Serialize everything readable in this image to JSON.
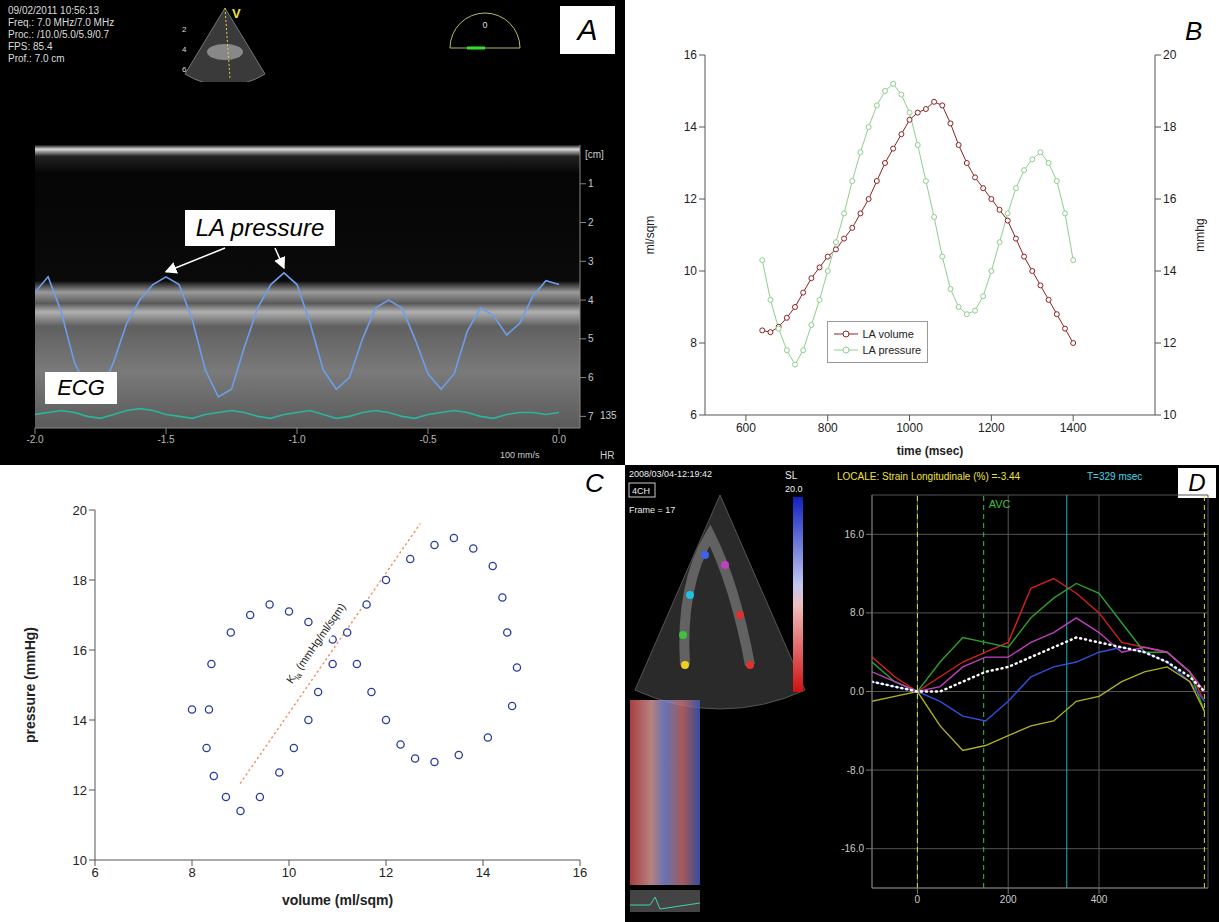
{
  "chart_data": [
    {
      "panel_label": "A",
      "type": "line",
      "header": [
        "09/02/2011 10:56:13",
        "Freq.: 7.0 MHz/7.0 MHz",
        "Proc.: /10.0/5.0/5.9/0.7",
        "FPS: 85.4",
        "Prof.: 7.0 cm"
      ],
      "probe_mark": "V",
      "probe_depth_ticks": [
        2,
        4,
        6
      ],
      "angle": 0,
      "y_unit": "[cm]",
      "x": [
        -2,
        -1.95,
        -1.9,
        -1.85,
        -1.8,
        -1.75,
        -1.7,
        -1.65,
        -1.6,
        -1.55,
        -1.5,
        -1.45,
        -1.4,
        -1.35,
        -1.3,
        -1.25,
        -1.2,
        -1.15,
        -1.1,
        -1.05,
        -1,
        -0.95,
        -0.9,
        -0.85,
        -0.8,
        -0.75,
        -0.7,
        -0.65,
        -0.6,
        -0.55,
        -0.5,
        -0.45,
        -0.4,
        -0.35,
        -0.3,
        -0.25,
        -0.2,
        -0.15,
        -0.1,
        -0.05,
        0
      ],
      "xlim": [
        -2,
        0.08
      ],
      "xticks": [
        {
          "value": -2,
          "label": "-2.0"
        },
        {
          "value": -1.5,
          "label": "-1.5"
        },
        {
          "value": -1,
          "label": "-1.0"
        },
        {
          "value": -0.5,
          "label": "-0.5"
        },
        {
          "value": 0,
          "label": "0.0"
        }
      ],
      "ylim": [
        0,
        7.3
      ],
      "yticks": [
        1,
        2,
        3,
        4,
        5,
        6,
        7
      ],
      "series": [
        {
          "name": "LA pressure",
          "color": "#6d9eeb",
          "values": [
            3.8,
            3.4,
            4.3,
            5.6,
            6.3,
            6.4,
            5.6,
            4.6,
            4.0,
            3.6,
            3.4,
            3.6,
            4.5,
            5.8,
            6.5,
            6.3,
            5.2,
            4.2,
            3.6,
            3.3,
            3.6,
            4.6,
            5.8,
            6.3,
            6.0,
            5.0,
            4.2,
            4.0,
            4.2,
            5.0,
            5.9,
            6.3,
            5.9,
            4.8,
            4.2,
            4.4,
            4.9,
            4.6,
            3.9,
            3.5,
            3.6
          ]
        },
        {
          "name": "ECG",
          "color": "#2bb59d",
          "values": [
            6.95,
            6.9,
            6.85,
            6.9,
            7.0,
            7.05,
            6.95,
            6.85,
            6.8,
            6.85,
            6.95,
            7.0,
            7.05,
            6.95,
            6.9,
            6.85,
            6.9,
            7.0,
            7.05,
            6.95,
            6.9,
            6.85,
            6.95,
            7.05,
            7.0,
            6.9,
            6.85,
            6.9,
            7.0,
            7.05,
            6.95,
            6.9,
            6.85,
            6.9,
            7.0,
            7.05,
            6.95,
            6.9,
            6.9,
            6.95,
            6.9
          ]
        }
      ],
      "heart_rate": 135,
      "heart_rate_label": "HR",
      "sweep_speed": "100 mm/s"
    },
    {
      "panel_label": "B",
      "type": "line",
      "x": [
        640,
        660,
        680,
        700,
        720,
        740,
        760,
        780,
        800,
        820,
        840,
        860,
        880,
        900,
        920,
        940,
        960,
        980,
        1000,
        1020,
        1040,
        1060,
        1080,
        1100,
        1120,
        1140,
        1160,
        1180,
        1200,
        1220,
        1240,
        1260,
        1280,
        1300,
        1320,
        1340,
        1360,
        1380,
        1400
      ],
      "xlim": [
        500,
        1600
      ],
      "xticks": [
        600,
        800,
        1000,
        1200,
        1400
      ],
      "ylim": [
        6,
        16
      ],
      "yticks": [
        6,
        8,
        10,
        12,
        14,
        16
      ],
      "y2lim": [
        10,
        20
      ],
      "y2ticks": [
        10,
        12,
        14,
        16,
        18,
        20
      ],
      "xlabel": "time (msec)",
      "ylabel": "ml/sqm",
      "y2label": "mmhg",
      "legend": "lower left",
      "marker": "circle",
      "series": [
        {
          "name": "LA volume",
          "color": "#8b2323",
          "values": [
            8.35,
            8.3,
            8.45,
            8.7,
            9.0,
            9.4,
            9.8,
            10.1,
            10.4,
            10.6,
            10.9,
            11.2,
            11.6,
            12.0,
            12.5,
            13.0,
            13.4,
            13.8,
            14.2,
            14.4,
            14.5,
            14.7,
            14.6,
            14.1,
            13.5,
            13.0,
            12.6,
            12.3,
            12.0,
            11.7,
            11.4,
            10.9,
            10.4,
            10.0,
            9.6,
            9.2,
            8.8,
            8.4,
            8.0
          ]
        },
        {
          "name": "LA pressure",
          "color": "#8fce8f",
          "axis": "y2",
          "values": [
            14.3,
            13.2,
            12.4,
            11.8,
            11.4,
            11.8,
            12.5,
            13.2,
            14.0,
            14.8,
            15.6,
            16.5,
            17.3,
            18.0,
            18.6,
            19.0,
            19.2,
            18.9,
            18.4,
            17.5,
            16.5,
            15.5,
            14.4,
            13.5,
            13.0,
            12.8,
            12.9,
            13.3,
            14.0,
            14.8,
            15.6,
            16.3,
            16.8,
            17.1,
            17.3,
            17.0,
            16.5,
            15.6,
            14.3
          ]
        }
      ]
    },
    {
      "panel_label": "C",
      "type": "scatter",
      "x": [
        8.35,
        8.3,
        8.45,
        8.7,
        9.0,
        9.4,
        9.8,
        10.1,
        10.4,
        10.6,
        10.9,
        11.2,
        11.6,
        12.0,
        12.5,
        13.0,
        13.4,
        13.8,
        14.2,
        14.4,
        14.5,
        14.7,
        14.6,
        14.1,
        13.5,
        13.0,
        12.6,
        12.3,
        12.0,
        11.7,
        11.4,
        10.9,
        10.4,
        10.0,
        9.6,
        9.2,
        8.8,
        8.4,
        8.0
      ],
      "y": [
        14.3,
        13.2,
        12.4,
        11.8,
        11.4,
        11.8,
        12.5,
        13.2,
        14.0,
        14.8,
        15.6,
        16.5,
        17.3,
        18.0,
        18.6,
        19.0,
        19.2,
        18.9,
        18.4,
        17.5,
        16.5,
        15.5,
        14.4,
        13.5,
        13.0,
        12.8,
        12.9,
        13.3,
        14.0,
        14.8,
        15.6,
        16.3,
        16.8,
        17.1,
        17.3,
        17.0,
        16.5,
        15.6,
        14.3
      ],
      "xlim": [
        6,
        16
      ],
      "xticks": [
        6,
        8,
        10,
        12,
        14,
        16
      ],
      "ylim": [
        10,
        20
      ],
      "yticks": [
        10,
        12,
        14,
        16,
        18,
        20
      ],
      "xlabel": "volume (ml/sqm)",
      "ylabel": "pressure (mmHg)",
      "color": "#2a3aa0",
      "marker": "circle",
      "slope_line": {
        "x": [
          9.0,
          12.7
        ],
        "y": [
          12.2,
          19.6
        ],
        "color": "#f09060",
        "line_style": "dotted"
      },
      "annotation": {
        "symbol": "K",
        "subscript": "la",
        "text": " (mmHg/ml/sqm)"
      }
    },
    {
      "panel_label": "D",
      "type": "line",
      "echo_timestamp": "2008/03/04-12:19:42",
      "view": "4CH",
      "frame": "Frame = 17",
      "colorbar_label": "SL",
      "colorbar_ticks": [
        {
          "value": 20,
          "label": "20.0"
        }
      ],
      "title": "LOCALE: Strain Longitudinale (%) =-3.44",
      "subtitle": "T=329 msec",
      "x": [
        -100,
        -50,
        0,
        50,
        100,
        150,
        200,
        250,
        300,
        350,
        400,
        450,
        500,
        550,
        600,
        632
      ],
      "xlim": [
        -100,
        640
      ],
      "xticks": [
        0,
        200,
        400
      ],
      "ylim": [
        -20,
        20
      ],
      "yticks": [
        {
          "value": 16,
          "label": "16.0"
        },
        {
          "value": 8,
          "label": "8.0"
        },
        {
          "value": 0,
          "label": "0.0"
        },
        {
          "value": -8,
          "label": "-8.0"
        },
        {
          "value": -16,
          "label": "-16.0"
        }
      ],
      "grid": true,
      "series": [
        {
          "color": "#d62020",
          "values": [
            3.5,
            1.5,
            0,
            1.5,
            3,
            4,
            5,
            10.5,
            11.5,
            10,
            8,
            5,
            4.5,
            4,
            2,
            -1
          ]
        },
        {
          "color": "#2ca02c",
          "values": [
            3,
            1,
            0,
            3,
            5.5,
            5,
            4.5,
            7.5,
            9.5,
            11,
            10,
            7,
            4,
            4,
            2,
            -2
          ]
        },
        {
          "color": "#c040c0",
          "values": [
            2,
            1,
            0,
            0.5,
            2.5,
            3.5,
            3.5,
            5,
            6,
            7.5,
            6,
            4,
            4.5,
            4,
            2,
            0
          ]
        },
        {
          "color": "#3050e0",
          "values": [
            1,
            0.5,
            0,
            -1,
            -2.5,
            -3,
            -1,
            1.5,
            2.5,
            3,
            4,
            4.5,
            4,
            3,
            1,
            -1
          ]
        },
        {
          "color": "#b0b020",
          "values": [
            -1,
            -0.5,
            0,
            -3.5,
            -6,
            -5.5,
            -4.5,
            -3.5,
            -3,
            -1,
            -0.5,
            1,
            2,
            2.5,
            1,
            -2
          ]
        },
        {
          "color": "#ffffff",
          "line_style": "dotted",
          "values": [
            1,
            0.5,
            0,
            0,
            1,
            2,
            2.5,
            3.5,
            4.5,
            5.5,
            5,
            4.5,
            4,
            3,
            1.5,
            0
          ]
        }
      ],
      "markers": [
        {
          "x": 0,
          "color": "#e0e040",
          "line_style": "dashed"
        },
        {
          "x": 146,
          "label": "AVC",
          "color": "#40c040",
          "line_style": "dashed"
        },
        {
          "x": 329,
          "color": "#20b0c0",
          "line_style": "solid"
        },
        {
          "x": 632,
          "color": "#e0e040",
          "line_style": "dashed"
        }
      ]
    }
  ]
}
